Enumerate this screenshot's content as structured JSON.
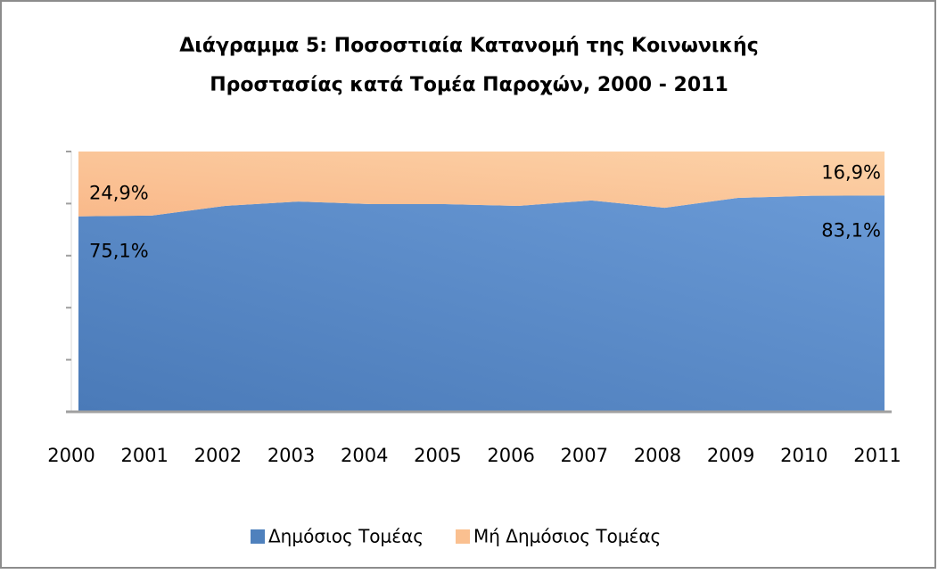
{
  "chart_data": {
    "type": "stacked_area_percent",
    "title": [
      "Διάγραμμα 5: Ποσοστιαία Κατανομή της Κοινωνικής",
      "Προστασίας κατά Τομέα Παροχών, 2000 - 2011"
    ],
    "categories": [
      "2000",
      "2001",
      "2002",
      "2003",
      "2004",
      "2005",
      "2006",
      "2007",
      "2008",
      "2009",
      "2010",
      "2011"
    ],
    "series": [
      {
        "name": "Δημόσιος Τομέας",
        "color": "#4f81bd",
        "values": [
          75.1,
          75.4,
          79.1,
          80.8,
          79.8,
          79.8,
          79.1,
          81.2,
          78.4,
          82.2,
          83.0,
          83.1
        ],
        "value_labels": [
          "75,1%",
          null,
          null,
          null,
          null,
          null,
          null,
          null,
          null,
          null,
          null,
          "83,1%"
        ]
      },
      {
        "name": "Μή Δημόσιος Τομέας",
        "color": "#fac090",
        "values": [
          24.9,
          24.6,
          20.9,
          19.2,
          20.2,
          20.2,
          20.9,
          18.8,
          21.6,
          17.8,
          17.0,
          16.9
        ],
        "value_labels": [
          "24,9%",
          null,
          null,
          null,
          null,
          null,
          null,
          null,
          null,
          null,
          null,
          "16,9%"
        ]
      }
    ],
    "ylim": [
      0,
      100
    ],
    "yticks": [
      0,
      20,
      40,
      60,
      80,
      100
    ],
    "ytick_labels": false,
    "legend": "bottom"
  }
}
